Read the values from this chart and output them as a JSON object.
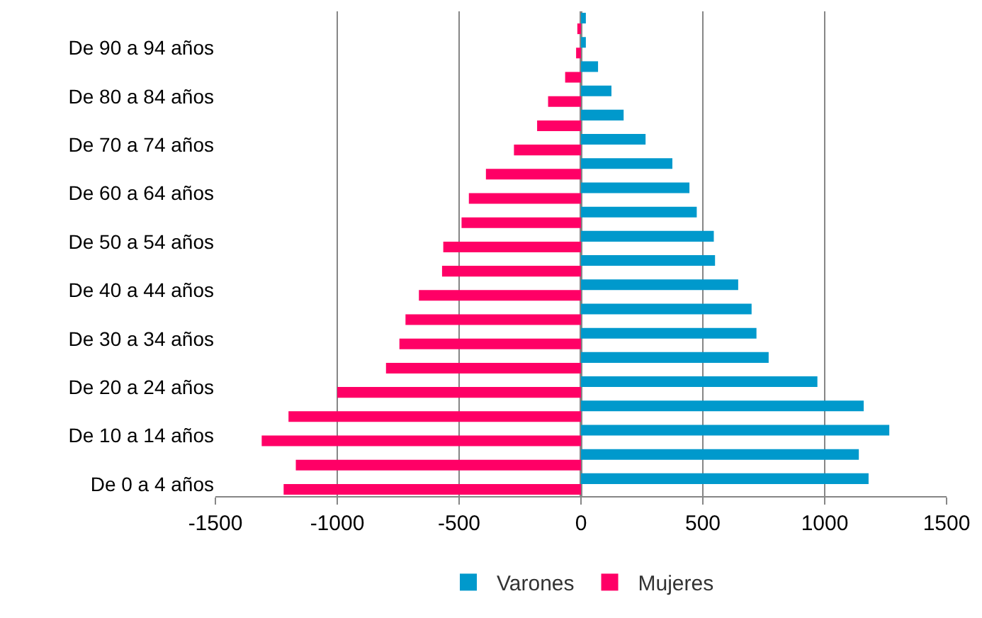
{
  "chart_data": {
    "type": "bar",
    "orientation": "horizontal",
    "categories": [
      null,
      "De 90 a 94 años",
      null,
      "De 80 a 84 años",
      null,
      "De 70 a 74 años",
      null,
      "De 60 a 64 años",
      null,
      "De 50 a 54 años",
      null,
      "De 40 a 44 años",
      null,
      "De 30 a 34 años",
      null,
      "De 20 a 24 años",
      null,
      "De 10 a 14 años",
      null,
      "De 0 a 4 años"
    ],
    "series": [
      {
        "name": "Varones",
        "color": "#0099cc",
        "values": [
          20,
          20,
          70,
          125,
          175,
          265,
          375,
          445,
          475,
          545,
          550,
          645,
          700,
          720,
          770,
          970,
          1160,
          1265,
          1140,
          1180
        ]
      },
      {
        "name": "Mujeres",
        "color": "#ff0066",
        "values": [
          -15,
          -20,
          -65,
          -135,
          -180,
          -275,
          -390,
          -460,
          -490,
          -565,
          -570,
          -665,
          -720,
          -745,
          -800,
          -1000,
          -1200,
          -1310,
          -1170,
          -1220
        ]
      }
    ],
    "xlim": [
      -1500,
      1500
    ],
    "xticks": [
      -1500,
      -1000,
      -500,
      0,
      500,
      1000,
      1500
    ],
    "grid": "x",
    "legend": "bottom"
  }
}
